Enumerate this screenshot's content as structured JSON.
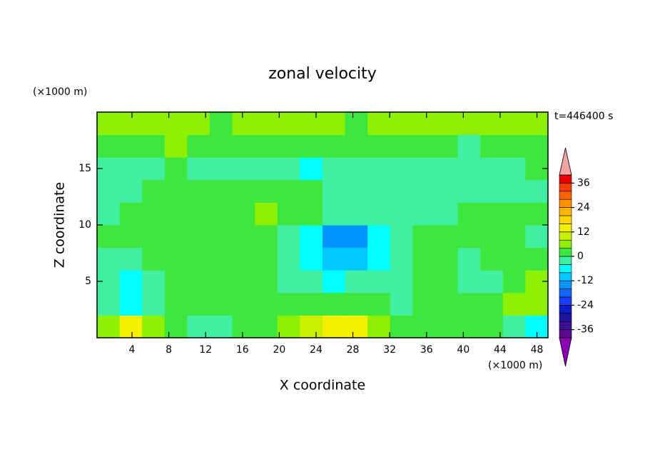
{
  "chart_data": {
    "type": "contour",
    "title": "zonal velocity",
    "xlabel": "X coordinate",
    "ylabel": "Z coordinate",
    "x_unit": "(×1000 m)",
    "y_unit": "(×1000 m)",
    "time_label": "t=446400 s",
    "xlim": [
      0.2,
      49.2
    ],
    "ylim": [
      0,
      20
    ],
    "xticks": [
      4,
      8,
      12,
      16,
      20,
      24,
      28,
      32,
      36,
      40,
      44,
      48
    ],
    "yticks": [
      5,
      10,
      15
    ],
    "levels": [
      -40,
      -36,
      -32,
      -28,
      -24,
      -20,
      -16,
      -12,
      -8,
      -4,
      0,
      4,
      8,
      12,
      16,
      20,
      24,
      28,
      32,
      36,
      40
    ],
    "colors": [
      "#5a0a8c",
      "#3c0f96",
      "#1e14a0",
      "#0a1ec8",
      "#1e3cff",
      "#1464ff",
      "#0096ff",
      "#00c8ff",
      "#00ffff",
      "#40f0a0",
      "#3ee63e",
      "#8cf000",
      "#c8f000",
      "#f0f000",
      "#ffd700",
      "#ffb400",
      "#ff9000",
      "#ff6400",
      "#ff3c00",
      "#e60000"
    ],
    "over_color": "#f4a4a0",
    "under_color": "#8c00b4",
    "colorbar_ticks": [
      36,
      24,
      12,
      0,
      -12,
      -24,
      -36
    ],
    "field": {
      "x": [
        1.4,
        3.9,
        6.3,
        8.8,
        11.2,
        13.7,
        16.1,
        18.6,
        21.0,
        23.5,
        25.9,
        28.4,
        30.8,
        33.3,
        35.7,
        38.2,
        40.6,
        43.1,
        45.5,
        48.0
      ],
      "z": [
        1,
        3,
        5,
        7,
        9,
        11,
        13,
        15,
        17,
        19
      ],
      "values": [
        [
          6,
          14,
          6,
          2,
          -2,
          -2,
          2,
          2,
          6,
          10,
          14,
          14,
          6,
          2,
          2,
          2,
          2,
          2,
          -2,
          -6
        ],
        [
          -2,
          -6,
          -2,
          2,
          2,
          2,
          2,
          2,
          2,
          2,
          2,
          2,
          2,
          -2,
          2,
          2,
          2,
          2,
          6,
          6
        ],
        [
          -2,
          -6,
          -2,
          2,
          2,
          2,
          2,
          2,
          -2,
          -2,
          -6,
          -2,
          -2,
          -2,
          2,
          2,
          -2,
          -2,
          2,
          6
        ],
        [
          -2,
          -2,
          2,
          2,
          2,
          2,
          2,
          2,
          -2,
          -6,
          -10,
          -10,
          -6,
          -2,
          2,
          2,
          -2,
          2,
          2,
          2
        ],
        [
          2,
          2,
          2,
          2,
          2,
          2,
          2,
          2,
          -2,
          -6,
          -14,
          -14,
          -6,
          -2,
          2,
          2,
          2,
          2,
          2,
          -2
        ],
        [
          -2,
          2,
          2,
          2,
          2,
          2,
          2,
          6,
          2,
          2,
          -2,
          -2,
          -2,
          -2,
          -2,
          -2,
          2,
          2,
          2,
          2
        ],
        [
          -2,
          -2,
          2,
          2,
          2,
          2,
          2,
          2,
          2,
          2,
          -2,
          -2,
          -2,
          -2,
          -2,
          -2,
          -2,
          -2,
          -2,
          -2
        ],
        [
          -2,
          -2,
          -2,
          2,
          -2,
          -2,
          -2,
          -2,
          -2,
          -6,
          -2,
          -2,
          -2,
          -2,
          -2,
          -2,
          -2,
          -2,
          -2,
          2
        ],
        [
          2,
          2,
          2,
          6,
          2,
          2,
          2,
          2,
          2,
          2,
          2,
          2,
          2,
          2,
          2,
          2,
          -2,
          2,
          2,
          2
        ],
        [
          6,
          6,
          6,
          6,
          6,
          2,
          6,
          6,
          6,
          6,
          6,
          2,
          6,
          6,
          6,
          6,
          6,
          6,
          6,
          6
        ]
      ]
    }
  }
}
